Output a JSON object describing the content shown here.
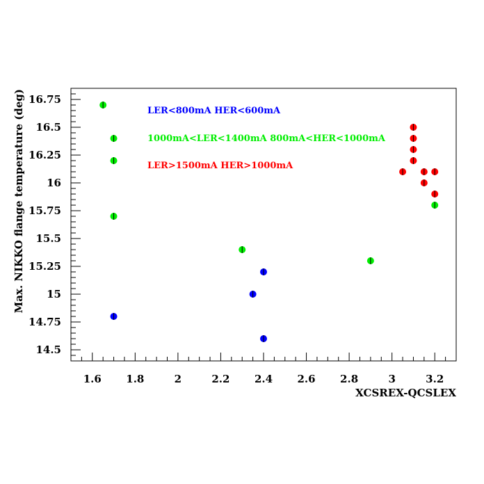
{
  "chart_data": {
    "type": "scatter",
    "xlabel": "XCSREX-QCSLEX",
    "ylabel": "Max. NIKKO flange temperature (deg)",
    "xlim": [
      1.5,
      3.3
    ],
    "ylim": [
      14.4,
      16.85
    ],
    "x_ticks": [
      "1.6",
      "1.8",
      "2",
      "2.2",
      "2.4",
      "2.6",
      "2.8",
      "3",
      "3.2"
    ],
    "y_ticks": [
      "14.5",
      "14.75",
      "15",
      "15.25",
      "15.5",
      "15.75",
      "16",
      "16.25",
      "16.5",
      "16.75"
    ],
    "grid": false,
    "legend_position": "top-center",
    "series": [
      {
        "name": "LER<800mA HER<600mA",
        "color": "#0000ff",
        "points": [
          [
            1.7,
            14.8
          ],
          [
            2.35,
            15.0
          ],
          [
            2.4,
            15.2
          ],
          [
            2.4,
            14.6
          ]
        ]
      },
      {
        "name": "1000mA<LER<1400mA 800mA<HER<1000mA",
        "color": "#00ee00",
        "points": [
          [
            1.65,
            16.7
          ],
          [
            1.7,
            16.4
          ],
          [
            1.7,
            16.2
          ],
          [
            1.7,
            15.7
          ],
          [
            2.3,
            15.4
          ],
          [
            2.9,
            15.3
          ],
          [
            3.2,
            15.8
          ]
        ]
      },
      {
        "name": "LER>1500mA HER>1000mA",
        "color": "#ff0000",
        "points": [
          [
            3.1,
            16.5
          ],
          [
            3.1,
            16.4
          ],
          [
            3.1,
            16.3
          ],
          [
            3.1,
            16.2
          ],
          [
            3.05,
            16.1
          ],
          [
            3.15,
            16.1
          ],
          [
            3.2,
            16.1
          ],
          [
            3.15,
            16.0
          ],
          [
            3.2,
            15.9
          ]
        ]
      }
    ]
  }
}
